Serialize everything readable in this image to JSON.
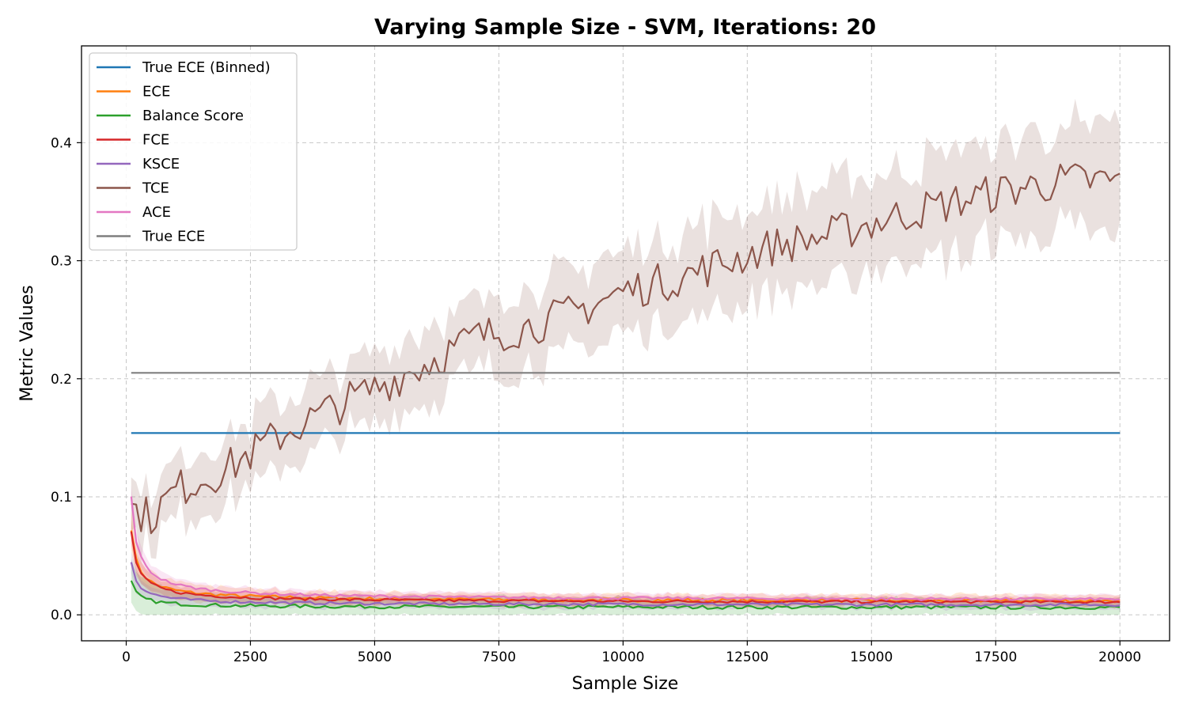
{
  "chart_data": {
    "type": "line",
    "title": "Varying Sample Size - SVM, Iterations: 20",
    "xlabel": "Sample Size",
    "ylabel": "Metric Values",
    "xlim": [
      -900,
      21000
    ],
    "ylim": [
      -0.022,
      0.482
    ],
    "xticks": [
      0,
      2500,
      5000,
      7500,
      10000,
      12500,
      15000,
      17500,
      20000
    ],
    "yticks": [
      0.0,
      0.1,
      0.2,
      0.3,
      0.4
    ],
    "xtick_labels": [
      "0",
      "2500",
      "5000",
      "7500",
      "10000",
      "12500",
      "15000",
      "17500",
      "20000"
    ],
    "ytick_labels": [
      "0.0",
      "0.1",
      "0.2",
      "0.3",
      "0.4"
    ],
    "grid": true,
    "legend_position": "upper-left",
    "series": [
      {
        "name": "True ECE (Binned)",
        "color": "#1f77b4",
        "shape": "constant",
        "constant": 0.154
      },
      {
        "name": "ECE",
        "color": "#ff7f0e",
        "shape": "decay",
        "start": 0.073,
        "end": 0.011,
        "noise": 0.0015,
        "band": 0.004
      },
      {
        "name": "Balance Score",
        "color": "#2ca02c",
        "shape": "decay",
        "start": 0.028,
        "end": 0.006,
        "noise": 0.0015,
        "band": 0.006
      },
      {
        "name": "FCE",
        "color": "#d62728",
        "shape": "decay",
        "start": 0.07,
        "end": 0.01,
        "noise": 0.0012,
        "band": 0.003
      },
      {
        "name": "KSCE",
        "color": "#9467bd",
        "shape": "decay",
        "start": 0.045,
        "end": 0.008,
        "noise": 0.0012,
        "band": 0.003
      },
      {
        "name": "TCE",
        "color": "#8c564b",
        "shape": "control",
        "control_x": [
          100,
          500,
          1000,
          2000,
          3000,
          4000,
          5000,
          6000,
          7000,
          8000,
          9000,
          10000,
          11000,
          12000,
          13000,
          14000,
          15000,
          16000,
          17000,
          18000,
          19000,
          20000
        ],
        "control_y": [
          0.09,
          0.083,
          0.106,
          0.123,
          0.15,
          0.172,
          0.192,
          0.212,
          0.235,
          0.243,
          0.256,
          0.274,
          0.284,
          0.298,
          0.312,
          0.32,
          0.332,
          0.343,
          0.353,
          0.362,
          0.368,
          0.367
        ],
        "noise": 0.012,
        "band": 0.04
      },
      {
        "name": "ACE",
        "color": "#e377c2",
        "shape": "decay",
        "start": 0.1,
        "end": 0.012,
        "noise": 0.0012,
        "band": 0.003
      },
      {
        "name": "True ECE",
        "color": "#7f7f7f",
        "shape": "constant",
        "constant": 0.205
      }
    ],
    "x_range": [
      100,
      20000
    ],
    "x_step": 100
  }
}
